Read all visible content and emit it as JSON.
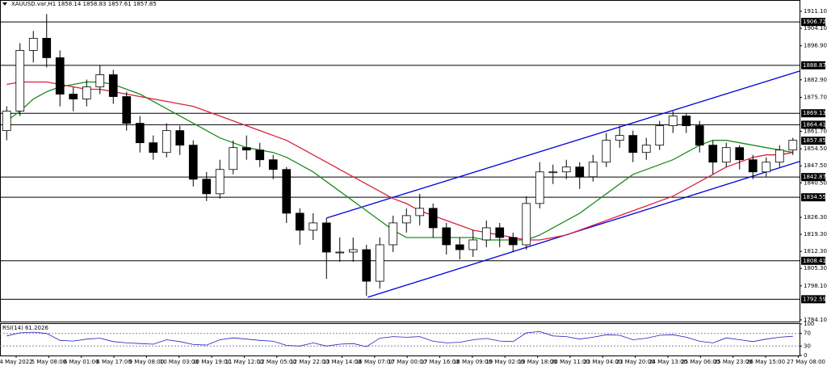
{
  "chart_data": {
    "type": "candlestick",
    "title": "XAUUSD.var,H1  1858.14 1858.83 1857.61 1857.85",
    "ylim": [
      1783.4,
      1915.75
    ],
    "yticks": [
      {
        "value": 1911.1,
        "label": "1911.10"
      },
      {
        "value": 1904.1,
        "label": "1904.10"
      },
      {
        "value": 1896.9,
        "label": "1896.90"
      },
      {
        "value": 1882.9,
        "label": "1882.90"
      },
      {
        "value": 1875.7,
        "label": "1875.70"
      },
      {
        "value": 1861.7,
        "label": "1861.70"
      },
      {
        "value": 1854.5,
        "label": "1854.50"
      },
      {
        "value": 1847.5,
        "label": "1847.50"
      },
      {
        "value": 1840.5,
        "label": "1840.50"
      },
      {
        "value": 1826.3,
        "label": "1826.30"
      },
      {
        "value": 1819.3,
        "label": "1819.30"
      },
      {
        "value": 1812.3,
        "label": "1812.30"
      },
      {
        "value": 1805.3,
        "label": "1805.30"
      },
      {
        "value": 1798.1,
        "label": "1798.10"
      },
      {
        "value": 1784.1,
        "label": "1784.10"
      }
    ],
    "time_labels": [
      "4 May 2022",
      "5 May 08:00",
      "6 May 01:00",
      "6 May 17:00",
      "9 May 08:00",
      "10 May 03:00",
      "10 May 19:00",
      "11 May 12:00",
      "12 May 05:00",
      "12 May 22:00",
      "13 May 14:00",
      "16 May 07:00",
      "17 May 00:00",
      "17 May 16:00",
      "18 May 09:00",
      "19 May 02:00",
      "19 May 18:00",
      "20 May 11:00",
      "23 May 04:00",
      "23 May 20:00",
      "24 May 13:00",
      "25 May 06:00",
      "25 May 23:00",
      "26 May 15:00",
      "27 May 08:00"
    ],
    "ohlc": [
      [
        1862,
        1872,
        1858,
        1870
      ],
      [
        1870,
        1898,
        1868,
        1895
      ],
      [
        1895,
        1903,
        1890,
        1900
      ],
      [
        1900,
        1910,
        1888,
        1892
      ],
      [
        1892,
        1895,
        1872,
        1877
      ],
      [
        1877,
        1880,
        1870,
        1875
      ],
      [
        1875,
        1883,
        1872,
        1880
      ],
      [
        1880,
        1889,
        1877,
        1885
      ],
      [
        1885,
        1887,
        1873,
        1876
      ],
      [
        1876,
        1878,
        1862,
        1865
      ],
      [
        1865,
        1868,
        1853,
        1857
      ],
      [
        1857,
        1860,
        1850,
        1853
      ],
      [
        1853,
        1865,
        1851,
        1862
      ],
      [
        1862,
        1864,
        1852,
        1856
      ],
      [
        1856,
        1858,
        1839,
        1842
      ],
      [
        1842,
        1845,
        1833,
        1836
      ],
      [
        1836,
        1850,
        1834,
        1846
      ],
      [
        1846,
        1858,
        1844,
        1855
      ],
      [
        1855,
        1860,
        1850,
        1854
      ],
      [
        1854,
        1857,
        1847,
        1850
      ],
      [
        1850,
        1852,
        1842,
        1846
      ],
      [
        1846,
        1847,
        1824,
        1828
      ],
      [
        1828,
        1830,
        1815,
        1821
      ],
      [
        1821,
        1828,
        1817,
        1824
      ],
      [
        1824,
        1826,
        1801,
        1812
      ],
      [
        1812,
        1818,
        1808,
        1812
      ],
      [
        1812,
        1818,
        1808,
        1813
      ],
      [
        1813,
        1815,
        1794,
        1800
      ],
      [
        1800,
        1818,
        1797,
        1815
      ],
      [
        1815,
        1827,
        1812,
        1824
      ],
      [
        1824,
        1830,
        1820,
        1827
      ],
      [
        1827,
        1836,
        1823,
        1830
      ],
      [
        1830,
        1832,
        1818,
        1822
      ],
      [
        1822,
        1824,
        1811,
        1815
      ],
      [
        1815,
        1818,
        1809,
        1813
      ],
      [
        1813,
        1821,
        1810,
        1817
      ],
      [
        1817,
        1825,
        1814,
        1822
      ],
      [
        1822,
        1824,
        1814,
        1818
      ],
      [
        1818,
        1820,
        1812,
        1815
      ],
      [
        1815,
        1835,
        1813,
        1832
      ],
      [
        1832,
        1849,
        1830,
        1845
      ],
      [
        1845,
        1848,
        1840,
        1845
      ],
      [
        1845,
        1850,
        1842,
        1847
      ],
      [
        1847,
        1849,
        1838,
        1843
      ],
      [
        1843,
        1852,
        1841,
        1849
      ],
      [
        1849,
        1861,
        1847,
        1858
      ],
      [
        1858,
        1864,
        1855,
        1860
      ],
      [
        1860,
        1862,
        1849,
        1853
      ],
      [
        1853,
        1859,
        1850,
        1856
      ],
      [
        1856,
        1866,
        1854,
        1864
      ],
      [
        1864,
        1870,
        1861,
        1868
      ],
      [
        1868,
        1869,
        1861,
        1864
      ],
      [
        1864,
        1866,
        1853,
        1856
      ],
      [
        1856,
        1858,
        1844,
        1849
      ],
      [
        1849,
        1857,
        1847,
        1855
      ],
      [
        1855,
        1856,
        1846,
        1850
      ],
      [
        1850,
        1852,
        1842,
        1845
      ],
      [
        1845,
        1851,
        1843,
        1849
      ],
      [
        1849,
        1856,
        1847,
        1854
      ],
      [
        1854,
        1859,
        1852,
        1858
      ]
    ],
    "ma_lines": [
      {
        "color": "#1e8c1e",
        "values": [
          1866,
          1870,
          1875,
          1878,
          1880,
          1881,
          1882,
          1882,
          1881,
          1879,
          1877,
          1874,
          1871,
          1868,
          1865,
          1862,
          1859,
          1857,
          1855,
          1854,
          1853,
          1851,
          1848,
          1845,
          1841,
          1837,
          1833,
          1829,
          1825,
          1821,
          1818,
          1818,
          1818,
          1818,
          1818,
          1818,
          1817,
          1817,
          1817,
          1817,
          1819,
          1822,
          1825,
          1828,
          1832,
          1836,
          1840,
          1844,
          1846,
          1848,
          1850,
          1853,
          1856,
          1858,
          1858,
          1857,
          1856,
          1855,
          1854,
          1853
        ]
      },
      {
        "color": "#dc2040",
        "values": [
          1881,
          1882,
          1882,
          1882,
          1881,
          1880,
          1879,
          1879,
          1878,
          1877,
          1876,
          1875,
          1874,
          1873,
          1872,
          1870,
          1868,
          1866,
          1864,
          1862,
          1860,
          1858,
          1855,
          1852,
          1849,
          1846,
          1843,
          1840,
          1837,
          1834,
          1832,
          1829,
          1827,
          1825,
          1823,
          1821,
          1820,
          1819,
          1818,
          1817,
          1817,
          1818,
          1819,
          1821,
          1823,
          1825,
          1827,
          1829,
          1831,
          1833,
          1835,
          1838,
          1841,
          1844,
          1847,
          1849,
          1851,
          1852,
          1852,
          1853
        ]
      }
    ],
    "trendlines": [
      {
        "color": "#0000dd",
        "x": [
          24,
          59.5
        ],
        "values": [
          1826,
          1886.5
        ]
      },
      {
        "color": "#0000dd",
        "x": [
          27.1,
          59.5
        ],
        "values": [
          1793.4,
          1849.3
        ]
      }
    ],
    "levels": [
      1906.72,
      1888.87,
      1869.13,
      1864.41,
      1842.87,
      1834.55,
      1808.41,
      1792.59
    ],
    "current_price": 1857.85,
    "rsi": {
      "title": "RSI(14) 61.2026",
      "color": "#2020c0",
      "ylim": [
        0,
        100
      ],
      "yticks": [
        100,
        70,
        30,
        0
      ],
      "levels": [
        70,
        30
      ],
      "values": [
        62,
        72,
        74,
        70,
        48,
        46,
        52,
        55,
        44,
        40,
        38,
        36,
        50,
        44,
        35,
        33,
        50,
        56,
        52,
        48,
        45,
        32,
        30,
        40,
        30,
        36,
        38,
        28,
        55,
        60,
        58,
        60,
        45,
        40,
        42,
        50,
        54,
        46,
        44,
        72,
        76,
        62,
        60,
        52,
        58,
        66,
        64,
        50,
        55,
        64,
        66,
        58,
        45,
        40,
        56,
        50,
        44,
        52,
        58,
        61
      ]
    }
  }
}
